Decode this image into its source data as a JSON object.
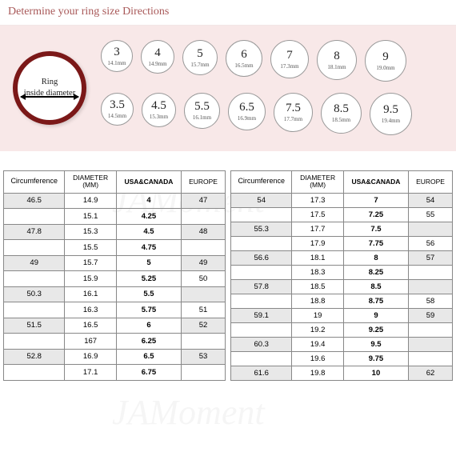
{
  "title": "Determine your ring size Directions",
  "watermark_text": "JAMoment",
  "ring_diagram": {
    "line1": "Ring",
    "line2": "inside diameter"
  },
  "colors": {
    "header_text": "#a85858",
    "top_bg": "#f8e8e8",
    "ring_border": "#7b1818",
    "shaded_row": "#e8e8e8",
    "border": "#888888"
  },
  "circles": {
    "row1": [
      {
        "n": "3",
        "mm": "14.1mm",
        "d": 40
      },
      {
        "n": "4",
        "mm": "14.9mm",
        "d": 42
      },
      {
        "n": "5",
        "mm": "15.7mm",
        "d": 44
      },
      {
        "n": "6",
        "mm": "16.5mm",
        "d": 46
      },
      {
        "n": "7",
        "mm": "17.3mm",
        "d": 48
      },
      {
        "n": "8",
        "mm": "18.1mm",
        "d": 50
      },
      {
        "n": "9",
        "mm": "19.0mm",
        "d": 52
      }
    ],
    "row2": [
      {
        "n": "3.5",
        "mm": "14.5mm",
        "d": 41
      },
      {
        "n": "4.5",
        "mm": "15.3mm",
        "d": 43
      },
      {
        "n": "5.5",
        "mm": "16.1mm",
        "d": 45
      },
      {
        "n": "6.5",
        "mm": "16.9mm",
        "d": 47
      },
      {
        "n": "7.5",
        "mm": "17.7mm",
        "d": 49
      },
      {
        "n": "8.5",
        "mm": "18.5mm",
        "d": 51
      },
      {
        "n": "9.5",
        "mm": "19.4mm",
        "d": 53
      }
    ]
  },
  "table_headers": {
    "circ": "Circumference",
    "dia1": "DIAMETER",
    "dia2": "(MM)",
    "usa": "USA&CANADA",
    "eur": "EUROPE"
  },
  "table_left": [
    {
      "c": "46.5",
      "d": "14.9",
      "u": "4",
      "e": "47",
      "sh": true
    },
    {
      "c": "",
      "d": "15.1",
      "u": "4.25",
      "e": "",
      "sh": false
    },
    {
      "c": "47.8",
      "d": "15.3",
      "u": "4.5",
      "e": "48",
      "sh": true
    },
    {
      "c": "",
      "d": "15.5",
      "u": "4.75",
      "e": "",
      "sh": false
    },
    {
      "c": "49",
      "d": "15.7",
      "u": "5",
      "e": "49",
      "sh": true
    },
    {
      "c": "",
      "d": "15.9",
      "u": "5.25",
      "e": "50",
      "sh": false
    },
    {
      "c": "50.3",
      "d": "16.1",
      "u": "5.5",
      "e": "",
      "sh": true
    },
    {
      "c": "",
      "d": "16.3",
      "u": "5.75",
      "e": "51",
      "sh": false
    },
    {
      "c": "51.5",
      "d": "16.5",
      "u": "6",
      "e": "52",
      "sh": true
    },
    {
      "c": "",
      "d": "167",
      "u": "6.25",
      "e": "",
      "sh": false
    },
    {
      "c": "52.8",
      "d": "16.9",
      "u": "6.5",
      "e": "53",
      "sh": true
    },
    {
      "c": "",
      "d": "17.1",
      "u": "6.75",
      "e": "",
      "sh": false
    }
  ],
  "table_right": [
    {
      "c": "54",
      "d": "17.3",
      "u": "7",
      "e": "54",
      "sh": true
    },
    {
      "c": "",
      "d": "17.5",
      "u": "7.25",
      "e": "55",
      "sh": false
    },
    {
      "c": "55.3",
      "d": "17.7",
      "u": "7.5",
      "e": "",
      "sh": true
    },
    {
      "c": "",
      "d": "17.9",
      "u": "7.75",
      "e": "56",
      "sh": false
    },
    {
      "c": "56.6",
      "d": "18.1",
      "u": "8",
      "e": "57",
      "sh": true
    },
    {
      "c": "",
      "d": "18.3",
      "u": "8.25",
      "e": "",
      "sh": false
    },
    {
      "c": "57.8",
      "d": "18.5",
      "u": "8.5",
      "e": "",
      "sh": true
    },
    {
      "c": "",
      "d": "18.8",
      "u": "8.75",
      "e": "58",
      "sh": false
    },
    {
      "c": "59.1",
      "d": "19",
      "u": "9",
      "e": "59",
      "sh": true
    },
    {
      "c": "",
      "d": "19.2",
      "u": "9.25",
      "e": "",
      "sh": false
    },
    {
      "c": "60.3",
      "d": "19.4",
      "u": "9.5",
      "e": "",
      "sh": true
    },
    {
      "c": "",
      "d": "19.6",
      "u": "9.75",
      "e": "",
      "sh": false
    },
    {
      "c": "61.6",
      "d": "19.8",
      "u": "10",
      "e": "62",
      "sh": true
    }
  ]
}
